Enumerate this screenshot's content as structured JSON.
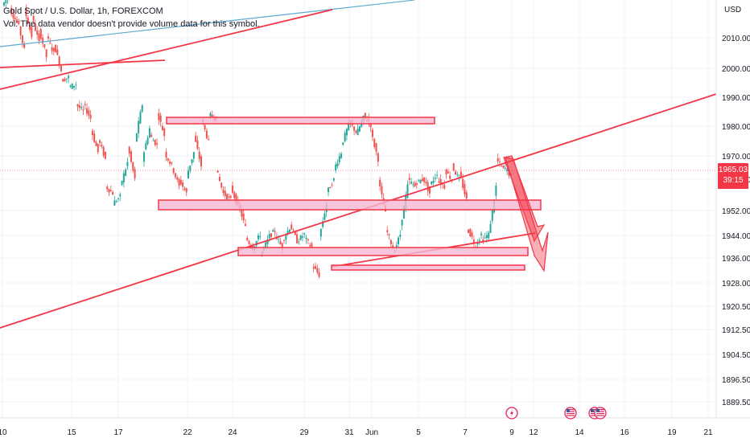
{
  "legend": {
    "symbol": "Gold Spot / U.S. Dollar, 1h, FOREXCOM",
    "volume_note": "Vol: The data vendor doesn't provide volume data for this symbol."
  },
  "price_badge": {
    "price": "1965.03",
    "countdown": "39:15"
  },
  "colors": {
    "up": "#26a69a",
    "down": "#ef5350",
    "drawing": "#f23645",
    "zone_fill": "#f5b8d3",
    "trend_blue": "#5fa8d3",
    "grid": "#f0f3fa",
    "axis_text": "#131722",
    "event_red": "#e0245e"
  },
  "events": [
    {
      "icon": "lightning-icon",
      "x_label": "10"
    },
    {
      "icon": "us-flag-icon",
      "x_label": "13"
    },
    {
      "icon": "us-flag-icon",
      "x_label": "14"
    },
    {
      "icon": "us-flag-icon",
      "x_label": "14"
    }
  ],
  "chart_data": {
    "type": "candlestick",
    "symbol": "Gold Spot / U.S. Dollar",
    "interval": "1h",
    "currency": "USD",
    "y_ticks": [
      2010.0,
      2000.0,
      1990.0,
      1980.0,
      1970.0,
      1960.0,
      1952.0,
      1944.0,
      1936.0,
      1928.0,
      1920.5,
      1912.5,
      1904.5,
      1896.5,
      1889.5
    ],
    "y_tick_labels": [
      "2010.00",
      "2000.00",
      "1990.00",
      "1980.00",
      "1970.00",
      "1960.00",
      "1952.00",
      "1944.00",
      "1936.00",
      "1928.00",
      "1920.50",
      "1912.50",
      "1904.50",
      "1896.50",
      "1889.50"
    ],
    "x_tick_labels": [
      "10",
      "15",
      "17",
      "22",
      "24",
      "29",
      "31",
      "Jun",
      "5",
      "7",
      "9",
      "12",
      "14",
      "16",
      "19",
      "21"
    ],
    "last_price": 1965.03,
    "grid": true,
    "path_points": [
      [
        2013,
        2016
      ],
      [
        2012,
        2008
      ],
      [
        2009,
        2000
      ],
      [
        2012,
        2004
      ],
      [
        2010,
        2002
      ],
      [
        2006,
        1998
      ],
      [
        2004,
        1999
      ],
      [
        2002,
        1994
      ],
      [
        1991,
        1992
      ],
      [
        1989,
        1990
      ],
      [
        1984,
        1982
      ],
      [
        1984,
        1980
      ],
      [
        1977,
        1970
      ],
      [
        1974,
        1968
      ],
      [
        1960,
        1958
      ],
      [
        1955,
        1957
      ],
      [
        1960,
        1967
      ],
      [
        1972,
        1962
      ],
      [
        1973,
        1984
      ],
      [
        1968,
        1977
      ],
      [
        1975,
        1972
      ],
      [
        1982,
        1975
      ],
      [
        1970,
        1966
      ],
      [
        1966,
        1960
      ],
      [
        1962,
        1958
      ],
      [
        1963,
        1970
      ],
      [
        1975,
        1966
      ],
      [
        1980,
        1973
      ],
      [
        1981,
        1980
      ],
      [
        1965,
        1958
      ],
      [
        1958,
        1956
      ],
      [
        1960,
        1954
      ],
      [
        1955,
        1948
      ],
      [
        1945,
        1942
      ],
      [
        1942,
        1946
      ],
      [
        1940,
        1944
      ],
      [
        1945,
        1947
      ],
      [
        1946,
        1942
      ],
      [
        1944,
        1948
      ],
      [
        1949,
        1944
      ],
      [
        1944,
        1946
      ],
      [
        1945,
        1942
      ],
      [
        1937,
        1934
      ],
      [
        1945,
        1955
      ],
      [
        1958,
        1962
      ],
      [
        1965,
        1970
      ],
      [
        1972,
        1978
      ],
      [
        1979,
        1976
      ],
      [
        1975,
        1980
      ],
      [
        1981,
        1978
      ],
      [
        1976,
        1968
      ],
      [
        1962,
        1952
      ],
      [
        1948,
        1942
      ],
      [
        1940,
        1946
      ],
      [
        1948,
        1960
      ],
      [
        1962,
        1960
      ],
      [
        1961,
        1962
      ],
      [
        1963,
        1958
      ],
      [
        1960,
        1964
      ],
      [
        1962,
        1960
      ],
      [
        1965,
        1962
      ],
      [
        1966,
        1962
      ],
      [
        1964,
        1956
      ],
      [
        1948,
        1944
      ],
      [
        1942,
        1946
      ],
      [
        1944,
        1946
      ],
      [
        1946,
        1960
      ],
      [
        1968,
        1965
      ],
      [
        1966,
        1963
      ]
    ],
    "drawings": {
      "horizontal_zones": [
        {
          "from": 1981.7,
          "to": 1982.8
        },
        {
          "from": 1952.3,
          "to": 1956.3
        },
        {
          "from": 1937.4,
          "to": 1939.6
        },
        {
          "from": 1932.5,
          "to": 1933.2
        }
      ],
      "forecast_arrows": [
        "down from 1968 to 1936",
        "down to 1940"
      ]
    }
  }
}
